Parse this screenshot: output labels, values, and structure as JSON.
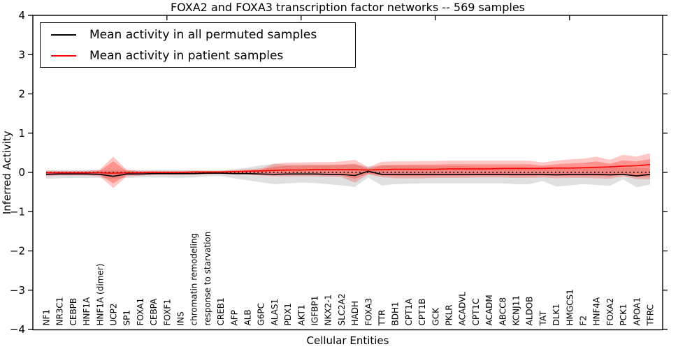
{
  "figure": {
    "title": "FOXA2 and FOXA3 transcription factor networks -- 569 samples",
    "xlabel": "Cellular Entities",
    "ylabel": "Inferred Activity"
  },
  "legend": {
    "entries": [
      {
        "label": "Mean activity in all permuted samples",
        "color": "#000000"
      },
      {
        "label": "Mean activity in patient samples",
        "color": "#ff0000"
      }
    ]
  },
  "chart_data": {
    "type": "line",
    "title": "FOXA2 and FOXA3 transcription factor networks -- 569 samples",
    "xlabel": "Cellular Entities",
    "ylabel": "Inferred Activity",
    "ylim": [
      -4,
      4
    ],
    "yticks": [
      4,
      3,
      2,
      1,
      0,
      -1,
      -2,
      -3,
      -4
    ],
    "x_major_tick_indices": [
      9,
      19,
      29,
      39
    ],
    "grid": false,
    "legend_position": "upper left",
    "zero_reference_line": {
      "y": 0,
      "style": "dotted",
      "color": "#000000"
    },
    "colors": {
      "permuted_line": "#000000",
      "patient_line": "#ff0000",
      "permuted_band": "rgba(0,0,0,0.12)",
      "patient_band_outer": "rgba(255,25,15,0.24)",
      "patient_band_inner": "rgba(255,25,15,0.30)"
    },
    "categories": [
      "NF1",
      "NR3C1",
      "CEBPB",
      "HNF1A",
      "HNF1A (dimer)",
      "UCP2",
      "SP1",
      "FOXA1",
      "CEBPA",
      "FOXF1",
      "INS",
      "chromatin remodeling",
      "response to starvation",
      "CREB1",
      "AFP",
      "ALB",
      "G6PC",
      "ALAS1",
      "PDX1",
      "AKT1",
      "IGFBP1",
      "NKX2-1",
      "SLC2A2",
      "HADH",
      "FOXA3",
      "TTR",
      "BDH1",
      "CPT1A",
      "CPT1B",
      "GCK",
      "PKLR",
      "ACADVL",
      "CPT1C",
      "ACADM",
      "ABCC8",
      "KCNJ11",
      "ALDOB",
      "TAT",
      "DLK1",
      "HMGCS1",
      "F2",
      "HNF4A",
      "FOXA2",
      "PCK1",
      "APOA1",
      "TFRC"
    ],
    "series": [
      {
        "name": "Mean activity in all permuted samples",
        "color": "#000000",
        "values": [
          -0.05,
          -0.04,
          -0.04,
          -0.04,
          -0.05,
          -0.1,
          -0.04,
          -0.04,
          -0.03,
          -0.03,
          -0.03,
          -0.03,
          -0.02,
          -0.02,
          -0.03,
          -0.03,
          -0.04,
          -0.05,
          -0.04,
          -0.04,
          -0.04,
          -0.05,
          -0.05,
          -0.08,
          0.03,
          -0.05,
          -0.05,
          -0.05,
          -0.05,
          -0.05,
          -0.05,
          -0.05,
          -0.05,
          -0.05,
          -0.05,
          -0.05,
          -0.05,
          -0.05,
          -0.06,
          -0.05,
          -0.05,
          -0.05,
          -0.06,
          -0.05,
          -0.09,
          -0.05
        ]
      },
      {
        "name": "Mean activity in patient samples",
        "color": "#ff0000",
        "values": [
          -0.01,
          -0.01,
          -0.01,
          -0.01,
          -0.01,
          -0.02,
          -0.01,
          -0.01,
          0.0,
          0.0,
          0.0,
          0.01,
          0.01,
          0.01,
          0.02,
          0.03,
          0.04,
          0.05,
          0.06,
          0.06,
          0.07,
          0.07,
          0.07,
          0.07,
          0.06,
          0.07,
          0.08,
          0.08,
          0.08,
          0.08,
          0.09,
          0.09,
          0.09,
          0.09,
          0.1,
          0.1,
          0.1,
          0.1,
          0.11,
          0.11,
          0.12,
          0.13,
          0.14,
          0.16,
          0.17,
          0.2
        ]
      }
    ],
    "bands": [
      {
        "name": "permuted-range",
        "color": "rgba(0,0,0,0.12)",
        "low": [
          -0.16,
          -0.15,
          -0.14,
          -0.14,
          -0.14,
          -0.16,
          -0.14,
          -0.13,
          -0.13,
          -0.13,
          -0.14,
          -0.13,
          -0.1,
          -0.09,
          -0.15,
          -0.2,
          -0.25,
          -0.3,
          -0.28,
          -0.26,
          -0.27,
          -0.3,
          -0.33,
          -0.37,
          -0.13,
          -0.33,
          -0.3,
          -0.29,
          -0.28,
          -0.28,
          -0.28,
          -0.28,
          -0.28,
          -0.28,
          -0.28,
          -0.3,
          -0.3,
          -0.22,
          -0.36,
          -0.33,
          -0.3,
          -0.32,
          -0.34,
          -0.18,
          -0.38,
          -0.31
        ],
        "high": [
          0.06,
          0.06,
          0.06,
          0.06,
          0.06,
          0.05,
          0.06,
          0.06,
          0.06,
          0.06,
          0.06,
          0.06,
          0.05,
          0.05,
          0.08,
          0.12,
          0.18,
          0.22,
          0.2,
          0.2,
          0.2,
          0.2,
          0.2,
          0.2,
          0.15,
          0.18,
          0.18,
          0.18,
          0.17,
          0.17,
          0.16,
          0.16,
          0.15,
          0.15,
          0.15,
          0.15,
          0.14,
          0.14,
          0.14,
          0.13,
          0.13,
          0.12,
          0.12,
          0.12,
          0.12,
          0.1
        ]
      },
      {
        "name": "patient-range-outer",
        "color": "rgba(255,25,15,0.24)",
        "low": [
          -0.09,
          -0.08,
          -0.08,
          -0.08,
          -0.1,
          -0.4,
          -0.1,
          -0.08,
          -0.07,
          -0.07,
          -0.07,
          -0.06,
          -0.05,
          -0.04,
          -0.05,
          -0.06,
          -0.08,
          -0.1,
          -0.1,
          -0.1,
          -0.1,
          -0.11,
          -0.12,
          -0.26,
          -0.05,
          -0.12,
          -0.15,
          -0.15,
          -0.15,
          -0.14,
          -0.14,
          -0.14,
          -0.13,
          -0.13,
          -0.13,
          -0.14,
          -0.14,
          -0.13,
          -0.15,
          -0.14,
          -0.14,
          -0.15,
          -0.16,
          -0.1,
          -0.17,
          -0.18
        ],
        "high": [
          0.04,
          0.04,
          0.04,
          0.04,
          0.07,
          0.4,
          0.07,
          0.04,
          0.04,
          0.04,
          0.04,
          0.04,
          0.04,
          0.04,
          0.06,
          0.08,
          0.1,
          0.22,
          0.25,
          0.25,
          0.26,
          0.26,
          0.28,
          0.32,
          0.13,
          0.27,
          0.28,
          0.28,
          0.29,
          0.29,
          0.3,
          0.3,
          0.3,
          0.3,
          0.3,
          0.3,
          0.3,
          0.25,
          0.3,
          0.33,
          0.35,
          0.4,
          0.32,
          0.45,
          0.4,
          0.49
        ]
      },
      {
        "name": "patient-range-inner",
        "color": "rgba(255,25,15,0.30)",
        "low": [
          -0.05,
          -0.05,
          -0.05,
          -0.05,
          -0.06,
          -0.28,
          -0.06,
          -0.05,
          -0.04,
          -0.04,
          -0.04,
          -0.04,
          -0.03,
          -0.03,
          -0.03,
          -0.04,
          -0.05,
          -0.06,
          -0.06,
          -0.06,
          -0.06,
          -0.07,
          -0.08,
          -0.16,
          -0.03,
          -0.08,
          -0.09,
          -0.09,
          -0.09,
          -0.09,
          -0.09,
          -0.09,
          -0.08,
          -0.08,
          -0.08,
          -0.09,
          -0.09,
          -0.08,
          -0.09,
          -0.09,
          -0.09,
          -0.09,
          -0.1,
          -0.06,
          -0.11,
          -0.11
        ],
        "high": [
          0.02,
          0.02,
          0.02,
          0.02,
          0.04,
          0.28,
          0.04,
          0.02,
          0.02,
          0.02,
          0.02,
          0.03,
          0.03,
          0.03,
          0.04,
          0.05,
          0.07,
          0.15,
          0.17,
          0.17,
          0.18,
          0.18,
          0.19,
          0.22,
          0.09,
          0.18,
          0.19,
          0.19,
          0.2,
          0.2,
          0.21,
          0.21,
          0.21,
          0.21,
          0.21,
          0.21,
          0.21,
          0.17,
          0.21,
          0.23,
          0.24,
          0.28,
          0.22,
          0.31,
          0.28,
          0.34
        ]
      }
    ]
  }
}
